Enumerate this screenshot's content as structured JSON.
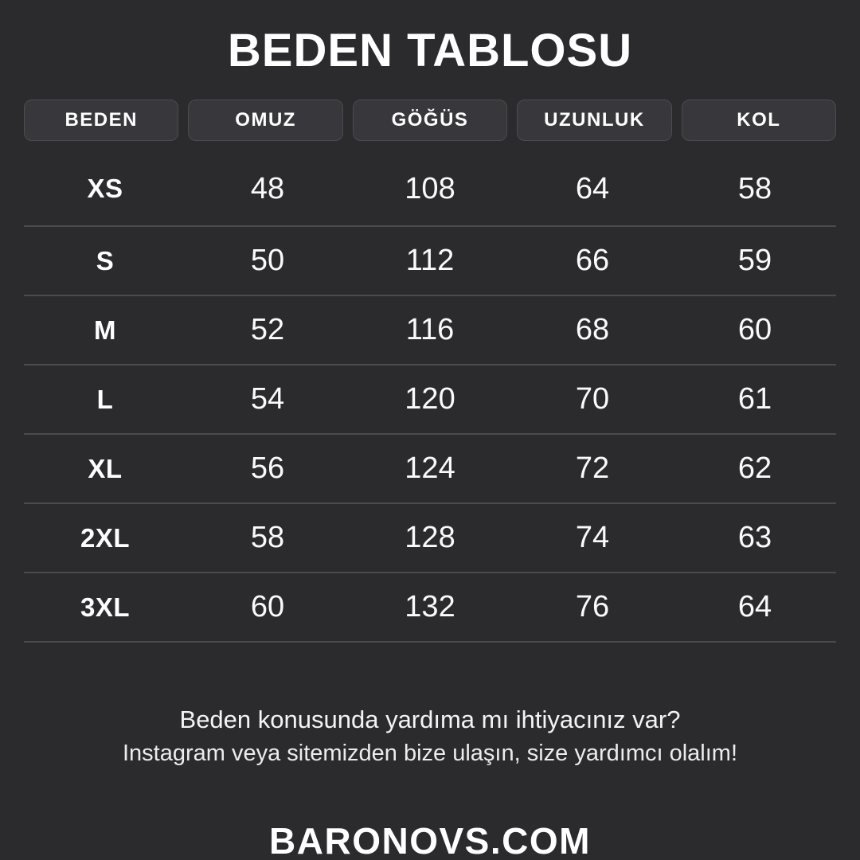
{
  "page": {
    "title": "BEDEN TABLOSU",
    "colors": {
      "background": "#2b2b2e",
      "chip_fill": "#37373c",
      "chip_border": "#4b4b52",
      "row_divider": "#4a4a4f",
      "text": "#ffffff"
    }
  },
  "chart_data": {
    "type": "table",
    "title": "BEDEN TABLOSU",
    "columns": [
      "BEDEN",
      "OMUZ",
      "GÖĞÜS",
      "UZUNLUK",
      "KOL"
    ],
    "rows": [
      [
        "XS",
        "48",
        "108",
        "64",
        "58"
      ],
      [
        "S",
        "50",
        "112",
        "66",
        "59"
      ],
      [
        "M",
        "52",
        "116",
        "68",
        "60"
      ],
      [
        "L",
        "54",
        "120",
        "70",
        "61"
      ],
      [
        "XL",
        "56",
        "124",
        "72",
        "62"
      ],
      [
        "2XL",
        "58",
        "128",
        "74",
        "63"
      ],
      [
        "3XL",
        "60",
        "132",
        "76",
        "64"
      ]
    ]
  },
  "footer": {
    "help_line1": "Beden konusunda yardıma mı ihtiyacınız var?",
    "help_line2": "Instagram veya sitemizden bize ulaşın, size yardımcı olalım!",
    "website": "BARONOVS.COM"
  }
}
